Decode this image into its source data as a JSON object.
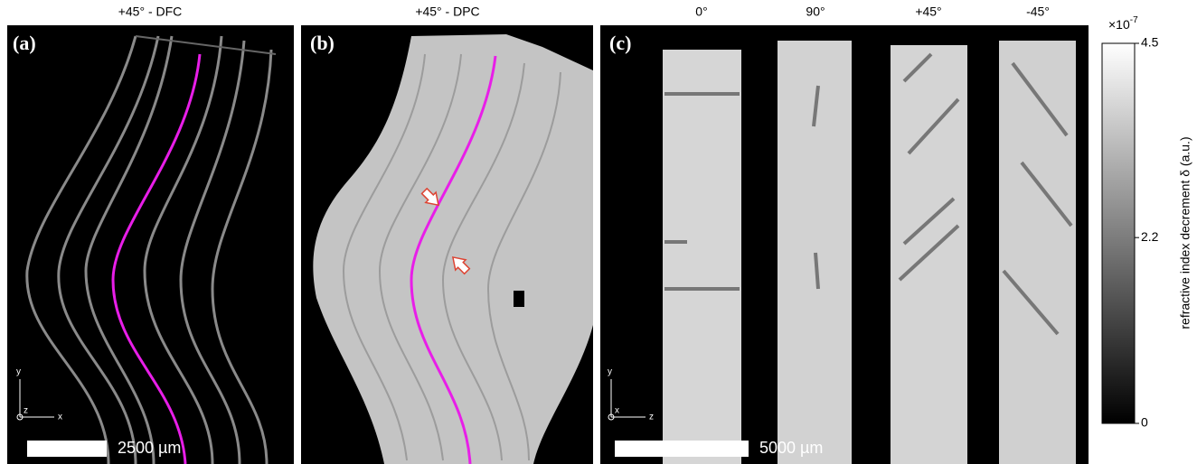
{
  "panels": [
    {
      "label": "(a)",
      "title": "+45° - DFC",
      "scale_bar": "2500 µm",
      "axes": [
        "y",
        "z",
        "x"
      ]
    },
    {
      "label": "(b)",
      "title": "+45° - DPC"
    },
    {
      "label": "(c)",
      "titles": [
        "0°",
        "90°",
        "+45°",
        "-45°"
      ],
      "scale_bar": "5000 µm",
      "axes": [
        "y",
        "x",
        "z"
      ]
    }
  ],
  "colorbar": {
    "label": "refractive index decrement δ  (a.u.)",
    "exponent_base": "×10",
    "exponent_power": "-7",
    "ticks": [
      0,
      2.2,
      4.5
    ]
  }
}
